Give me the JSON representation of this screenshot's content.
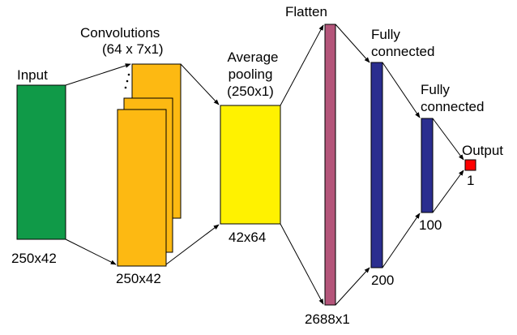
{
  "diagram": {
    "input": {
      "label": "Input",
      "size": "250x42",
      "color": "#109A48"
    },
    "convolutions": {
      "title": "Convolutions",
      "params": "(64 x 7x1)",
      "size": "250x42",
      "color": "#FDB912"
    },
    "pooling": {
      "title_line1": "Average",
      "title_line2": "pooling",
      "title_line3": "(250x1)",
      "size": "42x64",
      "color": "#FFF200"
    },
    "flatten": {
      "label": "Flatten",
      "size": "2688x1",
      "color": "#B4557A"
    },
    "fc1": {
      "line1": "Fully",
      "line2": "connected",
      "size": "200",
      "color": "#2B2E8F"
    },
    "fc2": {
      "line1": "Fully",
      "line2": "connected",
      "size": "100",
      "color": "#2B2E8F"
    },
    "output": {
      "label": "Output",
      "size": "1",
      "color": "#FF0000"
    }
  }
}
